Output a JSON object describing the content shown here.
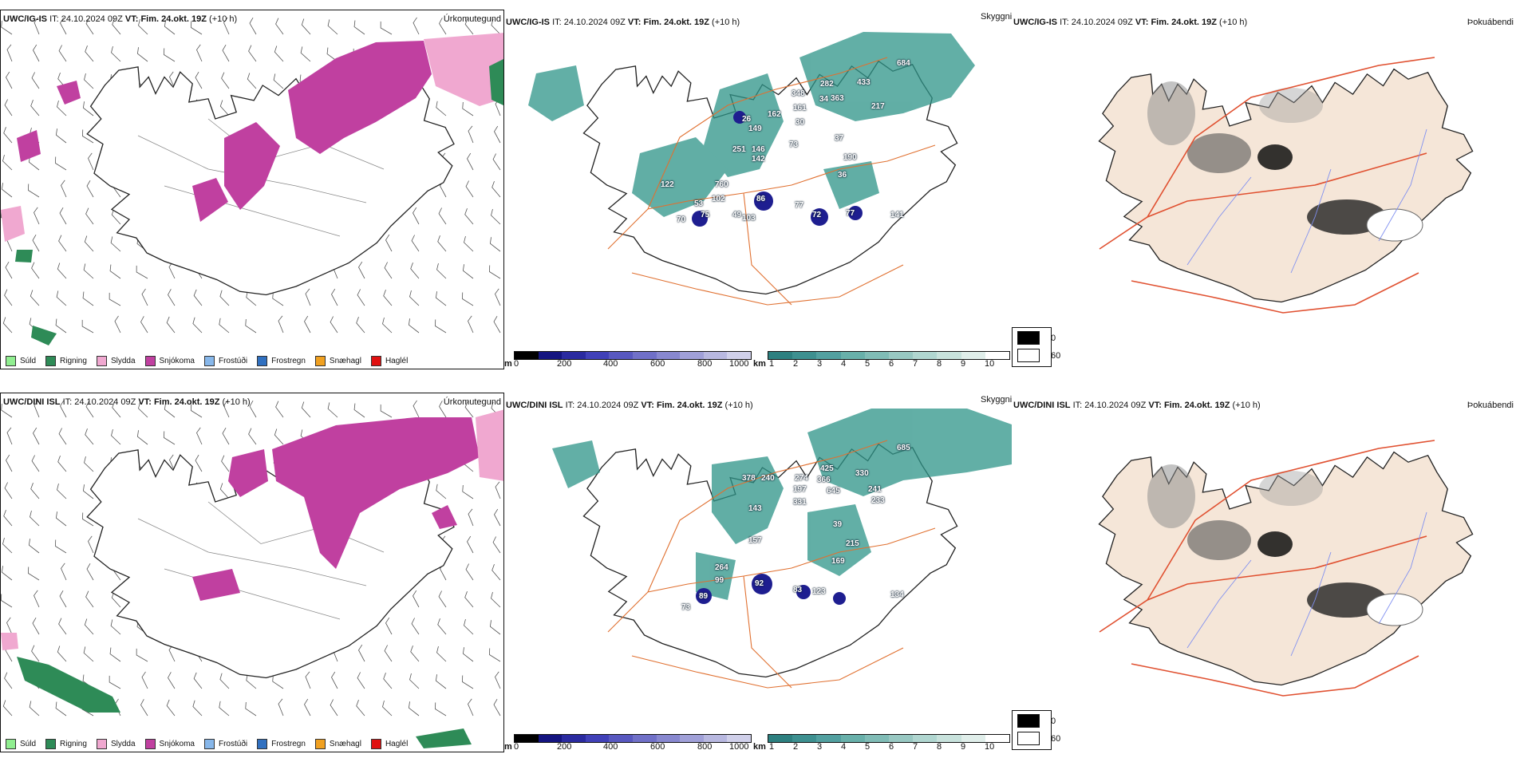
{
  "colors": {
    "sudd": "#90ee90",
    "rigning": "#2e8b57",
    "slydda": "#f0a8d0",
    "snjokoma": "#c040a0",
    "frostudi": "#87b7ea",
    "frostregn": "#3070c0",
    "snaehagl": "#f0a020",
    "haglel": "#e01010",
    "cloud": "#2d9488",
    "cloud_dark": "#1e1e90",
    "fog_land": "#f5e6d8",
    "road": "#e07030"
  },
  "rows": [
    {
      "model": "UWC/IG-IS",
      "header_it_label": "IT:",
      "header_it": "24.10.2024 09Z",
      "header_vt_label": "VT: Fim. 24.okt. 19Z",
      "header_step": "(+10 h)",
      "precip_title": "Úrkomutegund",
      "cloud_title": "Skyggni",
      "fog_title": "Þokuábendi",
      "labels": [
        "684",
        "282",
        "433",
        "348",
        "363",
        "34",
        "217",
        "161",
        "26",
        "162",
        "30",
        "149",
        "37",
        "73",
        "251",
        "146",
        "142",
        "190",
        "36",
        "122",
        "760",
        "53",
        "102",
        "86",
        "77",
        "72",
        "77",
        "141",
        "75",
        "70",
        "49",
        "103"
      ]
    },
    {
      "model": "UWC/DINI ISL",
      "header_it_label": "IT:",
      "header_it": "24.10.2024 09Z",
      "header_vt_label": "VT: Fim. 24.okt. 19Z",
      "header_step": "(+10 h)",
      "precip_title": "Úrkomutegund",
      "cloud_title": "Skyggni",
      "fog_title": "Þokuábendi",
      "labels": [
        "685",
        "425",
        "378",
        "274",
        "366",
        "240",
        "197",
        "645",
        "330",
        "241",
        "233",
        "331",
        "143",
        "39",
        "215",
        "157",
        "169",
        "264",
        "99",
        "92",
        "83",
        "123",
        "134",
        "89",
        "73"
      ]
    }
  ],
  "precip_legend": [
    {
      "label": "Súld",
      "color": "#90ee90"
    },
    {
      "label": "Rigning",
      "color": "#2e8b57"
    },
    {
      "label": "Slydda",
      "color": "#f0a8d0"
    },
    {
      "label": "Snjókoma",
      "color": "#c040a0"
    },
    {
      "label": "Frostúði",
      "color": "#87b7ea"
    },
    {
      "label": "Frostregn",
      "color": "#3070c0"
    },
    {
      "label": "Snæhagl",
      "color": "#f0a020"
    },
    {
      "label": "Haglél",
      "color": "#e01010"
    }
  ],
  "cloudbase_bar": {
    "unit": "m",
    "ticks": [
      "0",
      "200",
      "400",
      "600",
      "800",
      "1000"
    ],
    "colors": [
      "#000000",
      "#141480",
      "#2a2aa0",
      "#4040b8",
      "#5858c0",
      "#7070c8",
      "#8888d0",
      "#a0a0d8",
      "#b8b8e0",
      "#d0d0ea"
    ]
  },
  "visibility_bar": {
    "unit": "km",
    "ticks": [
      "1",
      "2",
      "3",
      "4",
      "5",
      "6",
      "7",
      "8",
      "9",
      "10"
    ],
    "colors": [
      "#2d8080",
      "#3d9090",
      "#52a0a0",
      "#68b0aa",
      "#80bcb6",
      "#98c8c2",
      "#b0d6d0",
      "#c8e2dc",
      "#e0eeea",
      "#ffffff"
    ]
  },
  "fog_legend": [
    {
      "value": "0",
      "color": "#000000"
    },
    {
      "value": "60",
      "color": "#ffffff"
    }
  ]
}
